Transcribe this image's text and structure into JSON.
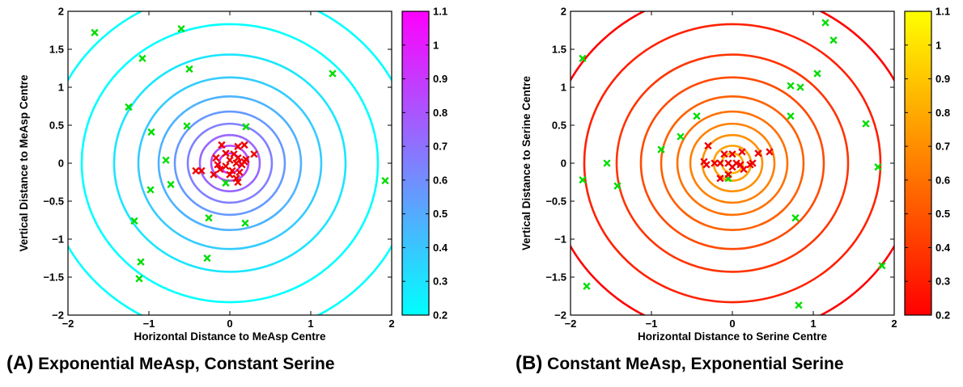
{
  "captions": [
    {
      "label": "(A)",
      "text": "Exponential MeAsp, Constant Serine"
    },
    {
      "label": "(B)",
      "text": "Constant MeAsp, Exponential Serine"
    }
  ],
  "chart_data": [
    {
      "type": "scatter",
      "panel": "A",
      "xlabel": "Horizontal Distance to MeAsp Centre",
      "ylabel": "Vertical Distance to MeAsp Centre",
      "xlim": [
        -2,
        2
      ],
      "ylim": [
        -2,
        2
      ],
      "xticks": [
        -2,
        -1,
        0,
        1,
        2
      ],
      "yticks": [
        -2,
        -1.5,
        -1,
        -0.5,
        0,
        0.5,
        1,
        1.5,
        2
      ],
      "xtick_labels": [
        "−2",
        "−1",
        "0",
        "1",
        "2"
      ],
      "ytick_labels": [
        "−2",
        "−1.5",
        "−1",
        "−0.5",
        "0",
        "0.5",
        "1",
        "1.5",
        "2"
      ],
      "contour_levels": {
        "centre": [
          0,
          0
        ],
        "radii": [
          0.13,
          0.23,
          0.37,
          0.52,
          0.68,
          0.88,
          1.13,
          1.43,
          1.83,
          2.28
        ],
        "colors": [
          "#cc33ff",
          "#b34dff",
          "#9966ff",
          "#8080ff",
          "#6699ff",
          "#4db3ff",
          "#33ccff",
          "#1ae6ff",
          "#00ffff",
          "#00ffff"
        ]
      },
      "colorbar": {
        "min": 0.2,
        "max": 1.1,
        "ticks": [
          "1.1",
          "1",
          "0.9",
          "0.8",
          "0.7",
          "0.6",
          "0.5",
          "0.4",
          "0.3",
          "0.2"
        ],
        "colors": [
          "#ff00ff",
          "#00ffff"
        ]
      },
      "series": [
        {
          "color": "#00dd00",
          "marker": "x",
          "points": [
            [
              -1.67,
              1.72
            ],
            [
              -0.6,
              1.77
            ],
            [
              -1.08,
              1.38
            ],
            [
              -0.5,
              1.24
            ],
            [
              -1.25,
              0.74
            ],
            [
              -0.97,
              0.41
            ],
            [
              -0.53,
              0.49
            ],
            [
              0.2,
              0.48
            ],
            [
              1.27,
              1.18
            ],
            [
              -0.79,
              0.04
            ],
            [
              -0.73,
              -0.28
            ],
            [
              -0.98,
              -0.35
            ],
            [
              -0.05,
              -0.26
            ],
            [
              1.92,
              -0.23
            ],
            [
              -1.18,
              -0.76
            ],
            [
              -0.26,
              -0.72
            ],
            [
              0.19,
              -0.79
            ],
            [
              -1.1,
              -1.3
            ],
            [
              -0.28,
              -1.25
            ],
            [
              -1.12,
              -1.52
            ]
          ]
        },
        {
          "color": "#ee0000",
          "marker": "x",
          "points": [
            [
              -0.1,
              0.24
            ],
            [
              0.1,
              0.22
            ],
            [
              0.18,
              0.24
            ],
            [
              -0.05,
              0.13
            ],
            [
              0.05,
              0.12
            ],
            [
              0.3,
              0.12
            ],
            [
              -0.17,
              0.07
            ],
            [
              0.0,
              0.04
            ],
            [
              0.1,
              0.07
            ],
            [
              0.2,
              0.05
            ],
            [
              -0.15,
              -0.02
            ],
            [
              -0.05,
              -0.04
            ],
            [
              0.08,
              0.0
            ],
            [
              0.15,
              -0.02
            ],
            [
              -0.12,
              -0.08
            ],
            [
              0.03,
              -0.1
            ],
            [
              0.12,
              -0.12
            ],
            [
              -0.35,
              -0.1
            ],
            [
              -0.42,
              -0.1
            ],
            [
              -0.2,
              -0.15
            ],
            [
              0.0,
              -0.15
            ],
            [
              0.08,
              -0.2
            ],
            [
              0.1,
              -0.25
            ],
            [
              0.18,
              0.02
            ]
          ]
        }
      ]
    },
    {
      "type": "scatter",
      "panel": "B",
      "xlabel": "Horizontal Distance to Serine Centre",
      "ylabel": "Vertical Distance to Serine Centre",
      "xlim": [
        -2,
        2
      ],
      "ylim": [
        -2,
        2
      ],
      "xticks": [
        -2,
        -1,
        0,
        1,
        2
      ],
      "yticks": [
        -2,
        -1.5,
        -1,
        -0.5,
        0,
        0.5,
        1,
        1.5,
        2
      ],
      "xtick_labels": [
        "−2",
        "−1",
        "0",
        "1",
        "2"
      ],
      "ytick_labels": [
        "−2",
        "−1.5",
        "−1",
        "−0.5",
        "0",
        "0.5",
        "1",
        "1.5",
        "2"
      ],
      "contour_levels": {
        "centre": [
          0,
          0
        ],
        "radii": [
          0.13,
          0.23,
          0.37,
          0.52,
          0.68,
          0.88,
          1.13,
          1.43,
          1.83,
          2.28
        ],
        "colors": [
          "#ffb000",
          "#ffa000",
          "#ff9000",
          "#ff8000",
          "#ff7000",
          "#ff6000",
          "#ff4a00",
          "#ff3400",
          "#ff2000",
          "#ff0000"
        ]
      },
      "colorbar": {
        "min": 0.2,
        "max": 1.1,
        "ticks": [
          "1.1",
          "1",
          "0.9",
          "0.8",
          "0.7",
          "0.6",
          "0.5",
          "0.4",
          "0.3",
          "0.2"
        ],
        "colors": [
          "#ffff00",
          "#ff0000"
        ]
      },
      "series": [
        {
          "color": "#00dd00",
          "marker": "x",
          "points": [
            [
              1.15,
              1.85
            ],
            [
              1.25,
              1.62
            ],
            [
              -1.85,
              1.38
            ],
            [
              1.05,
              1.18
            ],
            [
              0.72,
              1.02
            ],
            [
              0.84,
              1.0
            ],
            [
              -0.44,
              0.62
            ],
            [
              0.72,
              0.62
            ],
            [
              1.65,
              0.52
            ],
            [
              -0.64,
              0.35
            ],
            [
              -0.88,
              0.18
            ],
            [
              -1.55,
              0.0
            ],
            [
              1.8,
              -0.05
            ],
            [
              -1.85,
              -0.22
            ],
            [
              -0.05,
              -0.2
            ],
            [
              -1.42,
              -0.3
            ],
            [
              0.78,
              -0.72
            ],
            [
              1.85,
              -1.35
            ],
            [
              -1.8,
              -1.62
            ],
            [
              0.82,
              -1.87
            ]
          ]
        },
        {
          "color": "#ee0000",
          "marker": "x",
          "points": [
            [
              -0.3,
              0.23
            ],
            [
              -0.1,
              0.12
            ],
            [
              0.0,
              0.12
            ],
            [
              0.12,
              0.15
            ],
            [
              0.32,
              0.13
            ],
            [
              0.46,
              0.15
            ],
            [
              0.25,
              0.0
            ],
            [
              -0.35,
              0.02
            ],
            [
              -0.22,
              0.0
            ],
            [
              -0.15,
              0.0
            ],
            [
              -0.05,
              0.0
            ],
            [
              0.05,
              0.0
            ],
            [
              0.1,
              -0.02
            ],
            [
              0.22,
              -0.02
            ],
            [
              -0.32,
              -0.02
            ],
            [
              0.0,
              -0.05
            ],
            [
              0.14,
              -0.08
            ],
            [
              -0.15,
              -0.2
            ],
            [
              -0.05,
              -0.15
            ]
          ]
        }
      ]
    }
  ]
}
